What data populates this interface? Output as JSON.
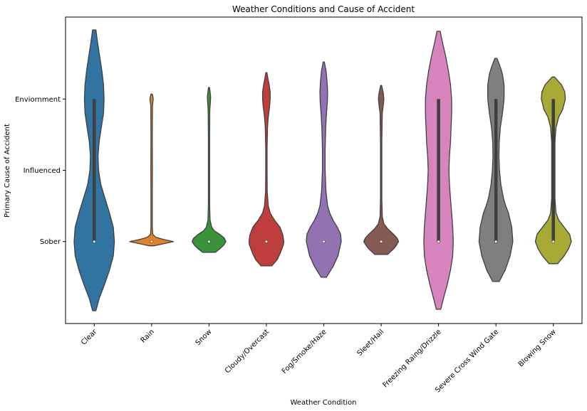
{
  "chart_data": {
    "type": "violin",
    "title": "Weather Conditions and Cause of Accident",
    "xlabel": "Weather Condition",
    "ylabel": "Primary Cause of Accident",
    "categories": [
      "Clear",
      "Rain",
      "Snow",
      "Cloudy/Overcast",
      "Fog/Smoke/Haze",
      "Sleet/Hail",
      "Freezing Raing/Drizzle",
      "Severe Cross Wind Gate",
      "Blowing Snow"
    ],
    "y_ticks": [
      {
        "label": "Enviornment",
        "value": 2
      },
      {
        "label": "Influenced",
        "value": 1
      },
      {
        "label": "Sober",
        "value": 0
      }
    ],
    "ylim": [
      -1.15,
      3.15
    ],
    "colors": [
      "#3274a1",
      "#e1812c",
      "#3a923a",
      "#c03d3e",
      "#9372b2",
      "#845b53",
      "#d684bd",
      "#7f7f7f",
      "#a9aa35"
    ],
    "violins": [
      {
        "category": "Clear",
        "ymin": -0.97,
        "ymax": 2.97,
        "q1": 0,
        "q3": 2,
        "median": 0,
        "density": [
          [
            -0.97,
            0.03
          ],
          [
            -0.8,
            0.09
          ],
          [
            -0.6,
            0.19
          ],
          [
            -0.4,
            0.28
          ],
          [
            -0.2,
            0.35
          ],
          [
            0,
            0.37
          ],
          [
            0.2,
            0.35
          ],
          [
            0.4,
            0.28
          ],
          [
            0.6,
            0.2
          ],
          [
            0.8,
            0.12
          ],
          [
            1,
            0.08
          ],
          [
            1.2,
            0.07
          ],
          [
            1.4,
            0.09
          ],
          [
            1.6,
            0.13
          ],
          [
            1.8,
            0.17
          ],
          [
            2,
            0.18
          ],
          [
            2.2,
            0.17
          ],
          [
            2.4,
            0.14
          ],
          [
            2.6,
            0.1
          ],
          [
            2.8,
            0.06
          ],
          [
            2.97,
            0.03
          ]
        ]
      },
      {
        "category": "Rain",
        "ymin": -0.06,
        "ymax": 2.07,
        "q1": 0,
        "q3": 0,
        "median": 0,
        "density": [
          [
            -0.06,
            0.04
          ],
          [
            -0.03,
            0.22
          ],
          [
            0,
            0.4
          ],
          [
            0.03,
            0.22
          ],
          [
            0.06,
            0.08
          ],
          [
            0.1,
            0.02
          ],
          [
            0.2,
            0.012
          ],
          [
            0.6,
            0.012
          ],
          [
            0.9,
            0.013
          ],
          [
            1,
            0.015
          ],
          [
            1.1,
            0.013
          ],
          [
            1.5,
            0.012
          ],
          [
            1.9,
            0.015
          ],
          [
            1.97,
            0.025
          ],
          [
            2,
            0.03
          ],
          [
            2.03,
            0.025
          ],
          [
            2.07,
            0.01
          ]
        ]
      },
      {
        "category": "Snow",
        "ymin": -0.15,
        "ymax": 2.16,
        "q1": 0,
        "q3": 0,
        "median": 0,
        "density": [
          [
            -0.15,
            0.12
          ],
          [
            -0.1,
            0.2
          ],
          [
            -0.05,
            0.27
          ],
          [
            0,
            0.31
          ],
          [
            0.05,
            0.28
          ],
          [
            0.1,
            0.2
          ],
          [
            0.15,
            0.1
          ],
          [
            0.2,
            0.05
          ],
          [
            0.3,
            0.02
          ],
          [
            0.5,
            0.012
          ],
          [
            1,
            0.012
          ],
          [
            1.5,
            0.012
          ],
          [
            1.85,
            0.015
          ],
          [
            1.95,
            0.025
          ],
          [
            2.03,
            0.03
          ],
          [
            2.1,
            0.02
          ],
          [
            2.16,
            0.01
          ]
        ]
      },
      {
        "category": "Cloudy/Overcast",
        "ymin": -0.34,
        "ymax": 2.37,
        "q1": 0,
        "q3": 0,
        "median": 0,
        "density": [
          [
            -0.34,
            0.1
          ],
          [
            -0.25,
            0.2
          ],
          [
            -0.15,
            0.26
          ],
          [
            -0.05,
            0.31
          ],
          [
            0,
            0.32
          ],
          [
            0.1,
            0.3
          ],
          [
            0.2,
            0.25
          ],
          [
            0.3,
            0.15
          ],
          [
            0.4,
            0.07
          ],
          [
            0.5,
            0.035
          ],
          [
            0.7,
            0.015
          ],
          [
            1,
            0.012
          ],
          [
            1.3,
            0.012
          ],
          [
            1.6,
            0.02
          ],
          [
            1.75,
            0.035
          ],
          [
            1.9,
            0.06
          ],
          [
            2,
            0.07
          ],
          [
            2.1,
            0.07
          ],
          [
            2.2,
            0.05
          ],
          [
            2.3,
            0.025
          ],
          [
            2.37,
            0.01
          ]
        ]
      },
      {
        "category": "Fog/Smoke/Haze",
        "ymin": -0.5,
        "ymax": 2.52,
        "q1": 0,
        "q3": 0,
        "median": 0,
        "density": [
          [
            -0.5,
            0.05
          ],
          [
            -0.35,
            0.17
          ],
          [
            -0.2,
            0.26
          ],
          [
            0,
            0.32
          ],
          [
            0.1,
            0.31
          ],
          [
            0.2,
            0.25
          ],
          [
            0.3,
            0.17
          ],
          [
            0.4,
            0.11
          ],
          [
            0.5,
            0.07
          ],
          [
            0.7,
            0.04
          ],
          [
            1,
            0.025
          ],
          [
            1.3,
            0.025
          ],
          [
            1.6,
            0.035
          ],
          [
            1.8,
            0.05
          ],
          [
            1.95,
            0.065
          ],
          [
            2.1,
            0.07
          ],
          [
            2.25,
            0.06
          ],
          [
            2.4,
            0.04
          ],
          [
            2.52,
            0.01
          ]
        ]
      },
      {
        "category": "Sleet/Hail",
        "ymin": -0.18,
        "ymax": 2.19,
        "q1": 0,
        "q3": 0,
        "median": 0,
        "density": [
          [
            -0.18,
            0.12
          ],
          [
            -0.1,
            0.23
          ],
          [
            -0.05,
            0.28
          ],
          [
            0,
            0.32
          ],
          [
            0.05,
            0.29
          ],
          [
            0.1,
            0.23
          ],
          [
            0.18,
            0.12
          ],
          [
            0.25,
            0.05
          ],
          [
            0.35,
            0.02
          ],
          [
            0.6,
            0.012
          ],
          [
            1,
            0.012
          ],
          [
            1.4,
            0.012
          ],
          [
            1.8,
            0.02
          ],
          [
            1.92,
            0.04
          ],
          [
            2,
            0.05
          ],
          [
            2.08,
            0.04
          ],
          [
            2.15,
            0.02
          ],
          [
            2.19,
            0.01
          ]
        ]
      },
      {
        "category": "Freezing Raing/Drizzle",
        "ymin": -0.95,
        "ymax": 2.95,
        "q1": 0,
        "q3": 2,
        "median": 0,
        "density": [
          [
            -0.95,
            0.04
          ],
          [
            -0.8,
            0.09
          ],
          [
            -0.6,
            0.16
          ],
          [
            -0.4,
            0.22
          ],
          [
            -0.2,
            0.26
          ],
          [
            0,
            0.27
          ],
          [
            0.2,
            0.26
          ],
          [
            0.4,
            0.24
          ],
          [
            0.6,
            0.22
          ],
          [
            0.8,
            0.2
          ],
          [
            1,
            0.19
          ],
          [
            1.2,
            0.2
          ],
          [
            1.4,
            0.22
          ],
          [
            1.6,
            0.23
          ],
          [
            1.8,
            0.24
          ],
          [
            2,
            0.24
          ],
          [
            2.2,
            0.22
          ],
          [
            2.4,
            0.18
          ],
          [
            2.6,
            0.13
          ],
          [
            2.8,
            0.07
          ],
          [
            2.95,
            0.03
          ]
        ]
      },
      {
        "category": "Severe Cross Wind Gate",
        "ymin": -0.56,
        "ymax": 2.57,
        "q1": 0,
        "q3": 2,
        "median": 0,
        "density": [
          [
            -0.56,
            0.06
          ],
          [
            -0.4,
            0.17
          ],
          [
            -0.2,
            0.26
          ],
          [
            0,
            0.31
          ],
          [
            0.2,
            0.29
          ],
          [
            0.4,
            0.23
          ],
          [
            0.5,
            0.18
          ],
          [
            0.6,
            0.14
          ],
          [
            0.8,
            0.09
          ],
          [
            1,
            0.065
          ],
          [
            1.2,
            0.055
          ],
          [
            1.4,
            0.06
          ],
          [
            1.6,
            0.08
          ],
          [
            1.8,
            0.12
          ],
          [
            2,
            0.15
          ],
          [
            2.2,
            0.15
          ],
          [
            2.35,
            0.12
          ],
          [
            2.45,
            0.08
          ],
          [
            2.57,
            0.02
          ]
        ]
      },
      {
        "category": "Blowing Snow",
        "ymin": -0.31,
        "ymax": 2.31,
        "q1": 0,
        "q3": 2,
        "median": 0,
        "density": [
          [
            -0.31,
            0.08
          ],
          [
            -0.2,
            0.2
          ],
          [
            -0.1,
            0.28
          ],
          [
            0,
            0.33
          ],
          [
            0.1,
            0.3
          ],
          [
            0.2,
            0.2
          ],
          [
            0.3,
            0.1
          ],
          [
            0.4,
            0.05
          ],
          [
            0.6,
            0.03
          ],
          [
            1,
            0.03
          ],
          [
            1.4,
            0.03
          ],
          [
            1.6,
            0.05
          ],
          [
            1.75,
            0.1
          ],
          [
            1.85,
            0.17
          ],
          [
            2,
            0.22
          ],
          [
            2.1,
            0.21
          ],
          [
            2.2,
            0.15
          ],
          [
            2.31,
            0.02
          ]
        ]
      }
    ]
  }
}
